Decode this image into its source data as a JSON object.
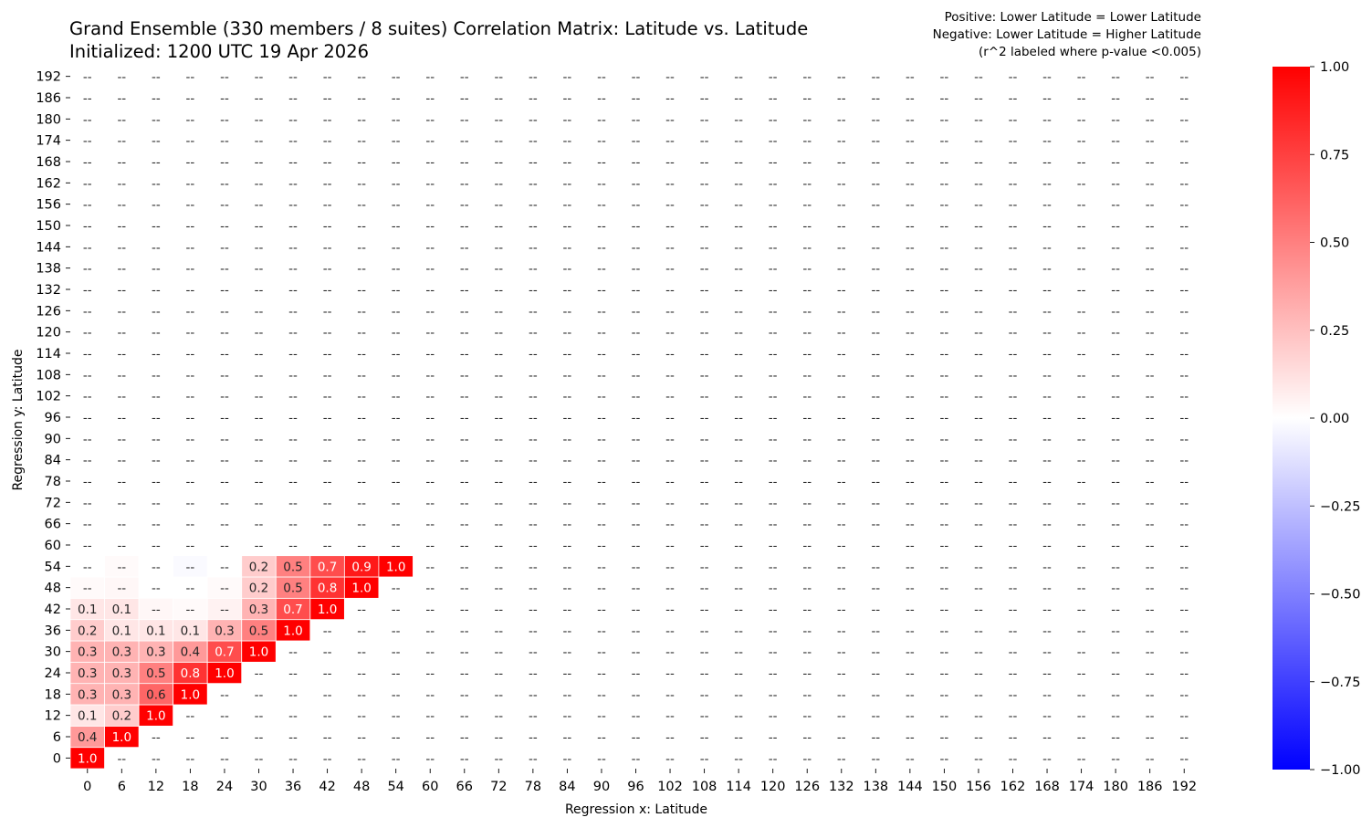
{
  "header": {
    "title": "Grand Ensemble (330 members / 8 suites) Correlation Matrix: Latitude vs. Latitude",
    "subtitle": "Initialized: 1200 UTC 19 Apr 2026",
    "note_lines": [
      "Positive: Lower Latitude = Lower Latitude",
      "Negative: Lower Latitude = Higher Latitude",
      "(r^2 labeled where p-value <0.005)"
    ]
  },
  "chart_data": {
    "type": "heatmap",
    "title": "Grand Ensemble (330 members / 8 suites) Correlation Matrix: Latitude vs. Latitude",
    "subtitle": "Initialized: 1200 UTC 19 Apr 2026",
    "xlabel": "Regression x: Latitude",
    "ylabel": "Regression y: Latitude",
    "x": [
      0,
      6,
      12,
      18,
      24,
      30,
      36,
      42,
      48,
      54,
      60,
      66,
      72,
      78,
      84,
      90,
      96,
      102,
      108,
      114,
      120,
      126,
      132,
      138,
      144,
      150,
      156,
      162,
      168,
      174,
      180,
      186,
      192
    ],
    "y": [
      0,
      6,
      12,
      18,
      24,
      30,
      36,
      42,
      48,
      54,
      60,
      66,
      72,
      78,
      84,
      90,
      96,
      102,
      108,
      114,
      120,
      126,
      132,
      138,
      144,
      150,
      156,
      162,
      168,
      174,
      180,
      186,
      192
    ],
    "missing_label": "--",
    "colorbar": {
      "min": -1.0,
      "max": 1.0,
      "ticks": [
        "1.00",
        "0.75",
        "0.50",
        "0.25",
        "0.00",
        "−0.25",
        "−0.50",
        "−0.75",
        "−1.00"
      ],
      "tick_values": [
        1.0,
        0.75,
        0.5,
        0.25,
        0.0,
        -0.25,
        -0.5,
        -0.75,
        -1.0
      ],
      "colors": {
        "negative": "#0000ff",
        "zero": "#ffffff",
        "positive": "#ff0000"
      }
    },
    "cells": [
      {
        "x": 0,
        "y": 0,
        "value": 1.0,
        "label": "1.0"
      },
      {
        "x": 0,
        "y": 6,
        "value": 0.4,
        "label": "0.4"
      },
      {
        "x": 6,
        "y": 6,
        "value": 1.0,
        "label": "1.0"
      },
      {
        "x": 0,
        "y": 12,
        "value": 0.1,
        "label": "0.1"
      },
      {
        "x": 6,
        "y": 12,
        "value": 0.2,
        "label": "0.2"
      },
      {
        "x": 12,
        "y": 12,
        "value": 1.0,
        "label": "1.0"
      },
      {
        "x": 0,
        "y": 18,
        "value": 0.3,
        "label": "0.3"
      },
      {
        "x": 6,
        "y": 18,
        "value": 0.3,
        "label": "0.3"
      },
      {
        "x": 12,
        "y": 18,
        "value": 0.6,
        "label": "0.6"
      },
      {
        "x": 18,
        "y": 18,
        "value": 1.0,
        "label": "1.0"
      },
      {
        "x": 0,
        "y": 24,
        "value": 0.3,
        "label": "0.3"
      },
      {
        "x": 6,
        "y": 24,
        "value": 0.3,
        "label": "0.3"
      },
      {
        "x": 12,
        "y": 24,
        "value": 0.5,
        "label": "0.5"
      },
      {
        "x": 18,
        "y": 24,
        "value": 0.8,
        "label": "0.8"
      },
      {
        "x": 24,
        "y": 24,
        "value": 1.0,
        "label": "1.0"
      },
      {
        "x": 0,
        "y": 30,
        "value": 0.3,
        "label": "0.3"
      },
      {
        "x": 6,
        "y": 30,
        "value": 0.3,
        "label": "0.3"
      },
      {
        "x": 12,
        "y": 30,
        "value": 0.3,
        "label": "0.3"
      },
      {
        "x": 18,
        "y": 30,
        "value": 0.4,
        "label": "0.4"
      },
      {
        "x": 24,
        "y": 30,
        "value": 0.7,
        "label": "0.7"
      },
      {
        "x": 30,
        "y": 30,
        "value": 1.0,
        "label": "1.0"
      },
      {
        "x": 0,
        "y": 36,
        "value": 0.2,
        "label": "0.2"
      },
      {
        "x": 6,
        "y": 36,
        "value": 0.1,
        "label": "0.1"
      },
      {
        "x": 12,
        "y": 36,
        "value": 0.1,
        "label": "0.1"
      },
      {
        "x": 18,
        "y": 36,
        "value": 0.1,
        "label": "0.1"
      },
      {
        "x": 24,
        "y": 36,
        "value": 0.3,
        "label": "0.3"
      },
      {
        "x": 30,
        "y": 36,
        "value": 0.5,
        "label": "0.5"
      },
      {
        "x": 36,
        "y": 36,
        "value": 1.0,
        "label": "1.0"
      },
      {
        "x": 0,
        "y": 42,
        "value": 0.1,
        "label": "0.1"
      },
      {
        "x": 6,
        "y": 42,
        "value": 0.1,
        "label": "0.1"
      },
      {
        "x": 12,
        "y": 42,
        "value": 0.03,
        "label": "--"
      },
      {
        "x": 18,
        "y": 42,
        "value": 0.02,
        "label": "--"
      },
      {
        "x": 24,
        "y": 42,
        "value": 0.05,
        "label": "--"
      },
      {
        "x": 30,
        "y": 42,
        "value": 0.3,
        "label": "0.3"
      },
      {
        "x": 36,
        "y": 42,
        "value": 0.7,
        "label": "0.7"
      },
      {
        "x": 42,
        "y": 42,
        "value": 1.0,
        "label": "1.0"
      },
      {
        "x": 0,
        "y": 48,
        "value": 0.02,
        "label": "--"
      },
      {
        "x": 6,
        "y": 48,
        "value": 0.03,
        "label": "--"
      },
      {
        "x": 24,
        "y": 48,
        "value": 0.02,
        "label": "--"
      },
      {
        "x": 30,
        "y": 48,
        "value": 0.2,
        "label": "0.2"
      },
      {
        "x": 36,
        "y": 48,
        "value": 0.5,
        "label": "0.5"
      },
      {
        "x": 42,
        "y": 48,
        "value": 0.8,
        "label": "0.8"
      },
      {
        "x": 48,
        "y": 48,
        "value": 1.0,
        "label": "1.0"
      },
      {
        "x": 6,
        "y": 54,
        "value": 0.02,
        "label": "--"
      },
      {
        "x": 18,
        "y": 54,
        "value": -0.02,
        "label": "--"
      },
      {
        "x": 30,
        "y": 54,
        "value": 0.2,
        "label": "0.2"
      },
      {
        "x": 36,
        "y": 54,
        "value": 0.5,
        "label": "0.5"
      },
      {
        "x": 42,
        "y": 54,
        "value": 0.7,
        "label": "0.7"
      },
      {
        "x": 48,
        "y": 54,
        "value": 0.9,
        "label": "0.9"
      },
      {
        "x": 54,
        "y": 54,
        "value": 1.0,
        "label": "1.0"
      }
    ]
  }
}
